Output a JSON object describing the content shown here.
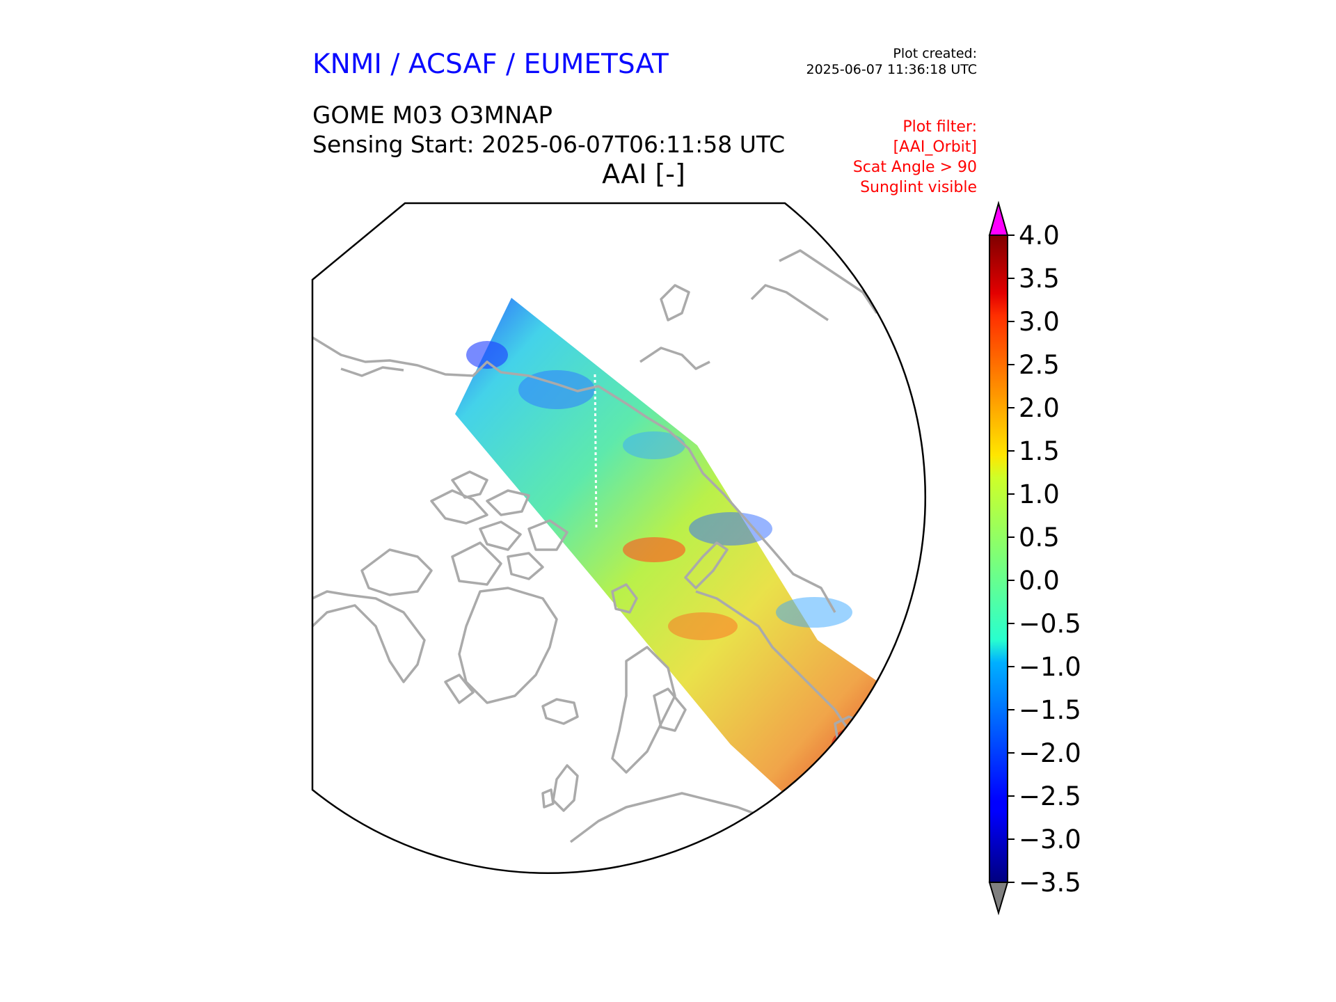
{
  "header": {
    "organization": "KNMI / ACSAF / EUMETSAT",
    "plot_created_label": "Plot created:",
    "plot_created_value": "2025-06-07 11:36:18 UTC",
    "product": "GOME M03 O3MNAP",
    "sensing_start": "Sensing Start: 2025-06-07T06:11:58 UTC",
    "variable": "AAI [-]"
  },
  "plot_filter": [
    "Plot filter:",
    "[AAI_Orbit]",
    "Scat Angle > 90",
    "Sunglint visible"
  ],
  "colorbar": {
    "ticks": [
      "4.0",
      "3.5",
      "3.0",
      "2.5",
      "2.0",
      "1.5",
      "1.0",
      "0.5",
      "0.0",
      "−0.5",
      "−1.0",
      "−1.5",
      "−2.0",
      "−2.5",
      "−3.0",
      "−3.5"
    ],
    "min": -3.5,
    "max": 4.0,
    "colormap": "jet",
    "over_color": "#ff00ff",
    "under_color": "#808080"
  },
  "map": {
    "projection": "north-polar-stereographic",
    "coastline_color": "#aaaaaa",
    "swath_direction": "upper-left to lower-right"
  }
}
